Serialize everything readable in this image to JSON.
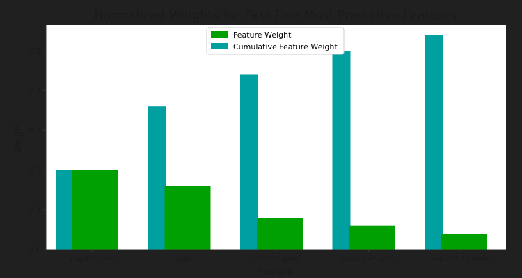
{
  "chart_data": {
    "type": "bar",
    "title": "Normalized Weights for First Five Most Predictive Features",
    "xlabel": "Feature",
    "ylabel": "Weight",
    "categories": [
      "capital-loss",
      "age",
      "capital-gain",
      "hours-per-week",
      "education-num"
    ],
    "ylim": [
      0,
      0.565
    ],
    "yticks": [
      "0.0",
      "0.1",
      "0.2",
      "0.3",
      "0.4",
      "0.5"
    ],
    "grid": false,
    "legend_position": "top-center",
    "series": [
      {
        "name": "Feature Weight",
        "color": "#00a000",
        "values": [
          0.2,
          0.16,
          0.08,
          0.06,
          0.04
        ]
      },
      {
        "name": "Cumulative Feature Weight",
        "color": "#00a0a0",
        "values": [
          0.2,
          0.36,
          0.44,
          0.5,
          0.54
        ]
      }
    ]
  },
  "colors": {
    "background": "#202020",
    "plot_area": "#ffffff",
    "text": "#1a1a1a"
  }
}
